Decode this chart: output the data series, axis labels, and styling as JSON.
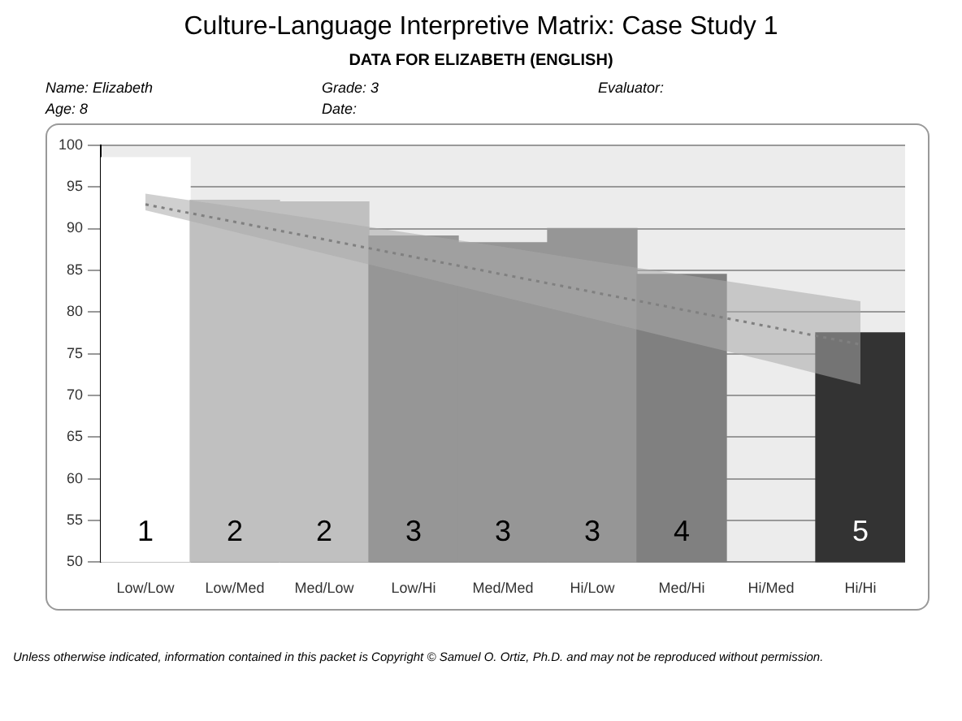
{
  "chart_data": {
    "type": "bar",
    "title": "Culture-Language Interpretive Matrix: Case Study 1",
    "subtitle": "DATA FOR ELIZABETH (ENGLISH)",
    "categories": [
      "Low/Low",
      "Low/Med",
      "Med/Low",
      "Low/Hi",
      "Med/Med",
      "Hi/Low",
      "Med/Hi",
      "Hi/Med",
      "Hi/Hi"
    ],
    "series": [
      {
        "values": [
          98.5,
          93.4,
          93.2,
          89.1,
          88.3,
          90,
          84.5,
          null,
          77.5
        ],
        "colors": [
          "#ffffff",
          "#c0c0c0",
          "#c0c0c0",
          "#969696",
          "#969696",
          "#969696",
          "#808080",
          "#ffffff",
          "#333333"
        ]
      },
      {
        "type": "line",
        "color": "#808080",
        "line_style": "dotted",
        "values": [
          92.9,
          90.8,
          88.7,
          86.6,
          84.5,
          82.4,
          80.3,
          78.2,
          76.1
        ],
        "lower": [
          92.2,
          89.6,
          87.0,
          84.4,
          81.8,
          79.2,
          76.6,
          74.0,
          71.3
        ],
        "upper": [
          94.2,
          92.6,
          91.0,
          89.4,
          87.8,
          86.1,
          84.5,
          82.9,
          81.3
        ]
      }
    ],
    "ylim": [
      50,
      100
    ],
    "yticks": [
      50,
      55,
      60,
      65,
      70,
      75,
      80,
      85,
      90,
      95,
      100
    ],
    "grid": "y",
    "legend": false,
    "annotations": [
      "Name: Elizabeth",
      "Grade: 3",
      "Evaluator:",
      "Age: 8",
      "Date:",
      "1",
      "2",
      "2",
      "3",
      "3",
      "3",
      "4",
      "5",
      "Unless otherwise indicated, information contained in this packet is Copyright © Samuel O. Ortiz, Ph.D. and may not be reproduced without permission."
    ]
  }
}
